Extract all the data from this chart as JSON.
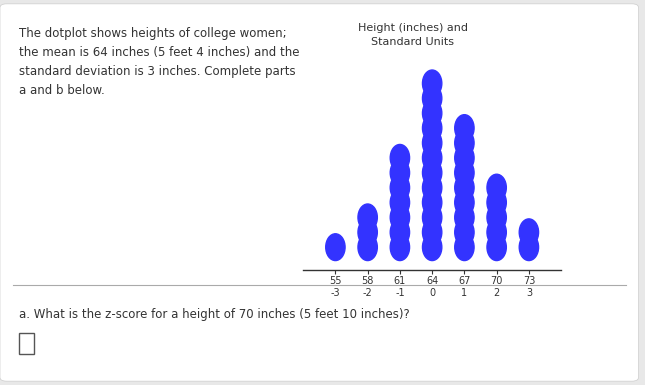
{
  "title_text": "The dotplot shows heights of college women;\nthe mean is 64 inches (5 feet 4 inches) and the\nstandard deviation is 3 inches. Complete parts\na and b below.",
  "chart_title": "Height (inches) and\nStandard Units",
  "question_text": "a. What is the z-score for a height of 70 inches (5 feet 10 inches)?",
  "mean": 64,
  "std": 3,
  "x_inches": [
    55,
    58,
    61,
    64,
    67,
    70,
    73
  ],
  "x_z": [
    -3,
    -2,
    -1,
    0,
    1,
    2,
    3
  ],
  "dot_color": "#3333FF",
  "bg_color": "#e8e8e8",
  "panel_color": "#ffffff",
  "dot_counts": [
    1,
    3,
    7,
    12,
    9,
    5,
    2
  ]
}
